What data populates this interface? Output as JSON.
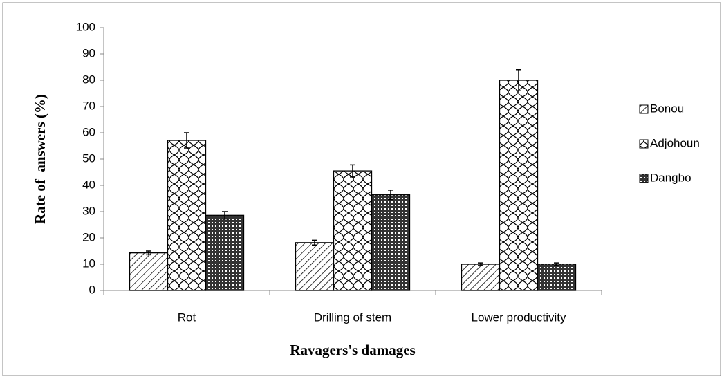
{
  "chart_data": {
    "type": "bar",
    "xlabel": "Ravagers's damages",
    "ylabel": "Rate of  answers (%)",
    "categories": [
      "Rot",
      "Drilling of stem",
      "Lower productivity"
    ],
    "series": [
      {
        "name": "Bonou",
        "color": "#000000",
        "pattern": "hatch",
        "values": [
          14.3,
          18.2,
          10
        ],
        "errors": [
          0.7,
          0.9,
          0.5
        ]
      },
      {
        "name": "Adjohoun",
        "color": "#000000",
        "pattern": "wave",
        "values": [
          57.1,
          45.5,
          80
        ],
        "errors": [
          2.9,
          2.3,
          4
        ]
      },
      {
        "name": "Dangbo",
        "color": "#000000",
        "pattern": "dots",
        "values": [
          28.6,
          36.4,
          10
        ],
        "errors": [
          1.4,
          1.8,
          0.5
        ]
      }
    ],
    "ylim": [
      0,
      100
    ],
    "yticks": [
      0,
      10,
      20,
      30,
      40,
      50,
      60,
      70,
      80,
      90,
      100
    ],
    "grid": false,
    "legend": "right"
  }
}
